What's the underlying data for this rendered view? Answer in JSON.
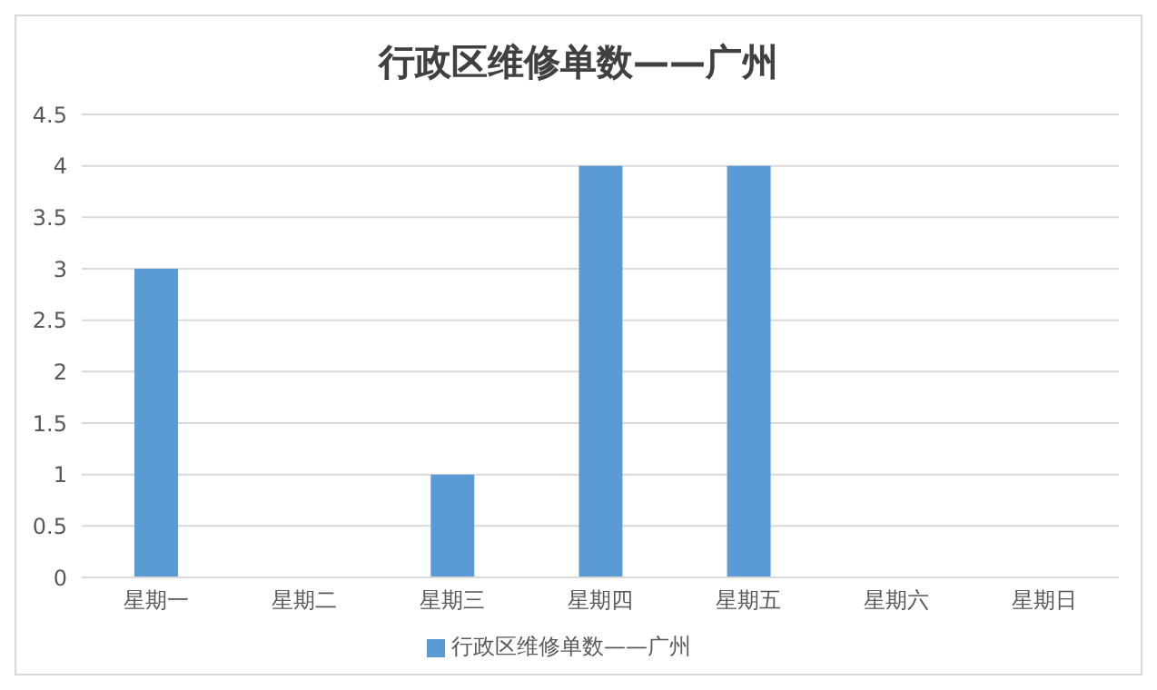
{
  "chart_data": {
    "type": "bar",
    "title": "行政区维修单数——广州",
    "categories": [
      "星期一",
      "星期二",
      "星期三",
      "星期四",
      "星期五",
      "星期六",
      "星期日"
    ],
    "series": [
      {
        "name": "行政区维修单数——广州",
        "color": "#5b9bd5",
        "values": [
          3,
          0,
          1,
          4,
          4,
          0,
          0
        ]
      }
    ],
    "ylim": [
      0,
      4.5
    ],
    "yticks": [
      0,
      0.5,
      1,
      1.5,
      2,
      2.5,
      3,
      3.5,
      4,
      4.5
    ],
    "grid": "y",
    "legend": "bottom"
  }
}
